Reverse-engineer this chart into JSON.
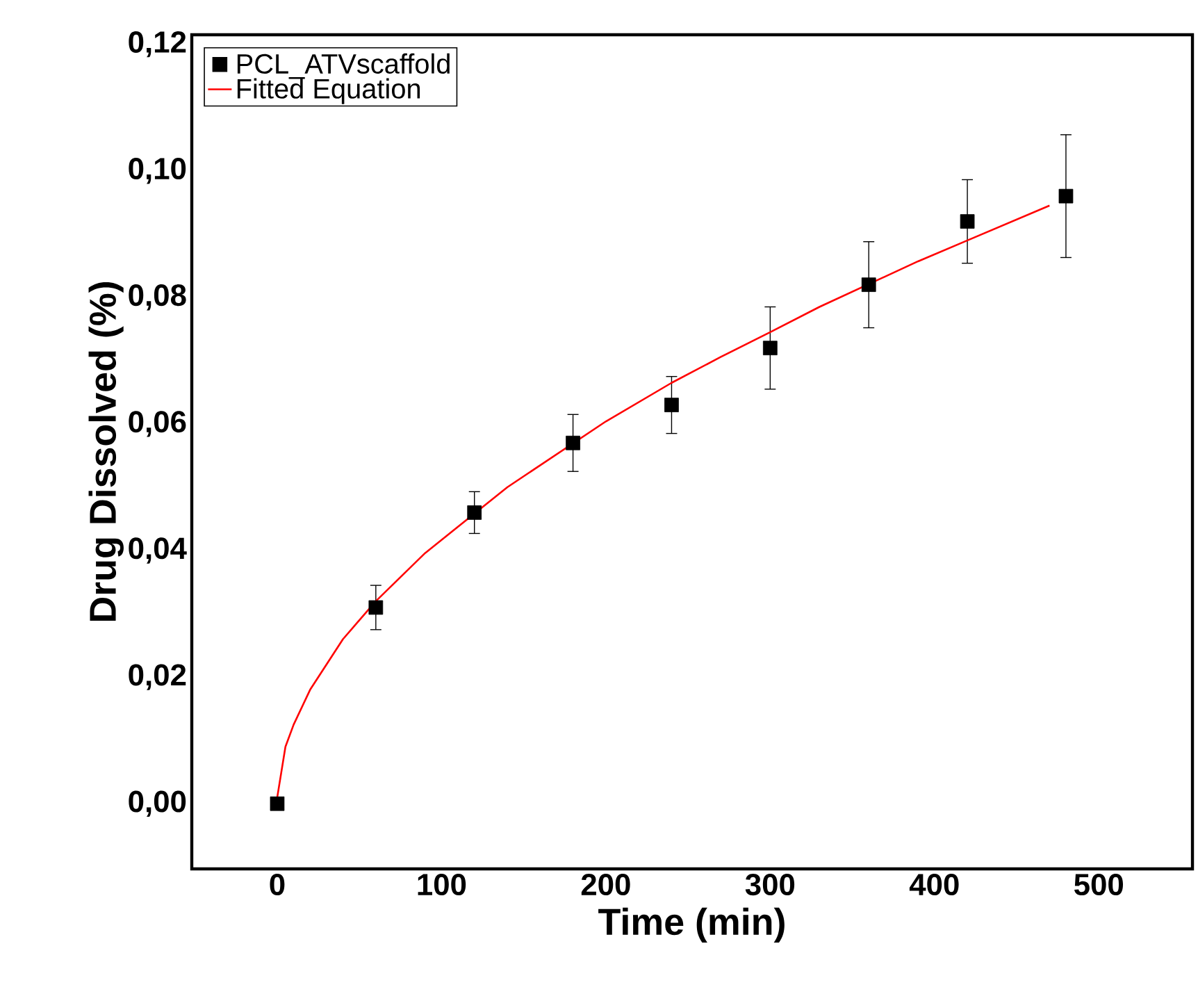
{
  "chart_data": {
    "type": "scatter",
    "xlabel": "Time (min)",
    "ylabel": "Drug Dissolved (%)",
    "xlim": [
      -52,
      557
    ],
    "ylim": [
      -0.0103,
      0.1215
    ],
    "xticks": [
      0,
      100,
      200,
      300,
      400,
      500
    ],
    "yticks": [
      {
        "value": 0,
        "label": "0,00"
      },
      {
        "value": 0.02,
        "label": "0,02"
      },
      {
        "value": 0.04,
        "label": "0,04"
      },
      {
        "value": 0.06,
        "label": "0,06"
      },
      {
        "value": 0.08,
        "label": "0,08"
      },
      {
        "value": 0.1,
        "label": "0,10"
      },
      {
        "value": 0.12,
        "label": "0,12"
      }
    ],
    "legend": "top left",
    "series": [
      {
        "name": "PCL_ATVscaffold",
        "marker": "square",
        "color": "#000000",
        "x": [
          0,
          60,
          120,
          180,
          240,
          300,
          360,
          420,
          480
        ],
        "values": [
          0.0,
          0.031,
          0.046,
          0.057,
          0.063,
          0.072,
          0.082,
          0.092,
          0.096
        ],
        "errors": [
          null,
          0.0035,
          0.0033,
          0.0045,
          0.0045,
          0.0065,
          0.0068,
          0.0066,
          0.0097
        ]
      },
      {
        "name": "Fitted Equation",
        "type": "line",
        "marker": "none",
        "line_style": "solid",
        "color": "#ff0000",
        "x": [
          0,
          5,
          10,
          20,
          40,
          60,
          90,
          140,
          200,
          240,
          270,
          300,
          330,
          390,
          420,
          470
        ],
        "values": [
          0.001,
          0.009,
          0.0125,
          0.018,
          0.026,
          0.032,
          0.0396,
          0.05,
          0.0604,
          0.0665,
          0.0706,
          0.0745,
          0.0785,
          0.0857,
          0.089,
          0.0945
        ]
      }
    ]
  }
}
